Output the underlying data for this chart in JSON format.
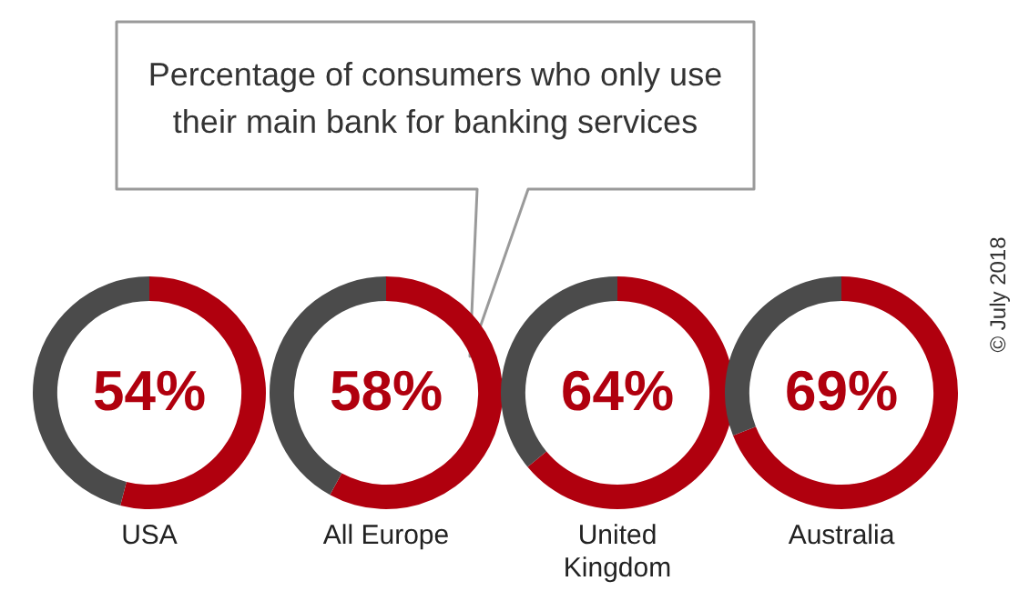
{
  "chart_data": [
    {
      "type": "donut",
      "title": "Percentage of consumers who only use their main bank for banking services",
      "xlabel": "USA",
      "categories": [
        null,
        null
      ],
      "values": [
        54,
        46
      ],
      "colors": [
        "#b0000e",
        "#4b4b4b"
      ],
      "value_labels": [
        "54%",
        null
      ]
    },
    {
      "type": "donut",
      "xlabel": "All Europe",
      "categories": [
        null,
        null
      ],
      "values": [
        58,
        42
      ],
      "colors": [
        "#b0000e",
        "#4b4b4b"
      ],
      "value_labels": [
        "58%",
        null
      ]
    },
    {
      "type": "donut",
      "xlabel": "United Kingdom",
      "categories": [
        null,
        null
      ],
      "values": [
        64,
        36
      ],
      "colors": [
        "#b0000e",
        "#4b4b4b"
      ],
      "value_labels": [
        "64%",
        null
      ]
    },
    {
      "type": "donut",
      "xlabel": "Australia",
      "categories": [
        null,
        null
      ],
      "values": [
        69,
        31
      ],
      "colors": [
        "#b0000e",
        "#4b4b4b"
      ],
      "value_labels": [
        "69%",
        null
      ],
      "annotations": [
        "© July 2018"
      ]
    }
  ]
}
